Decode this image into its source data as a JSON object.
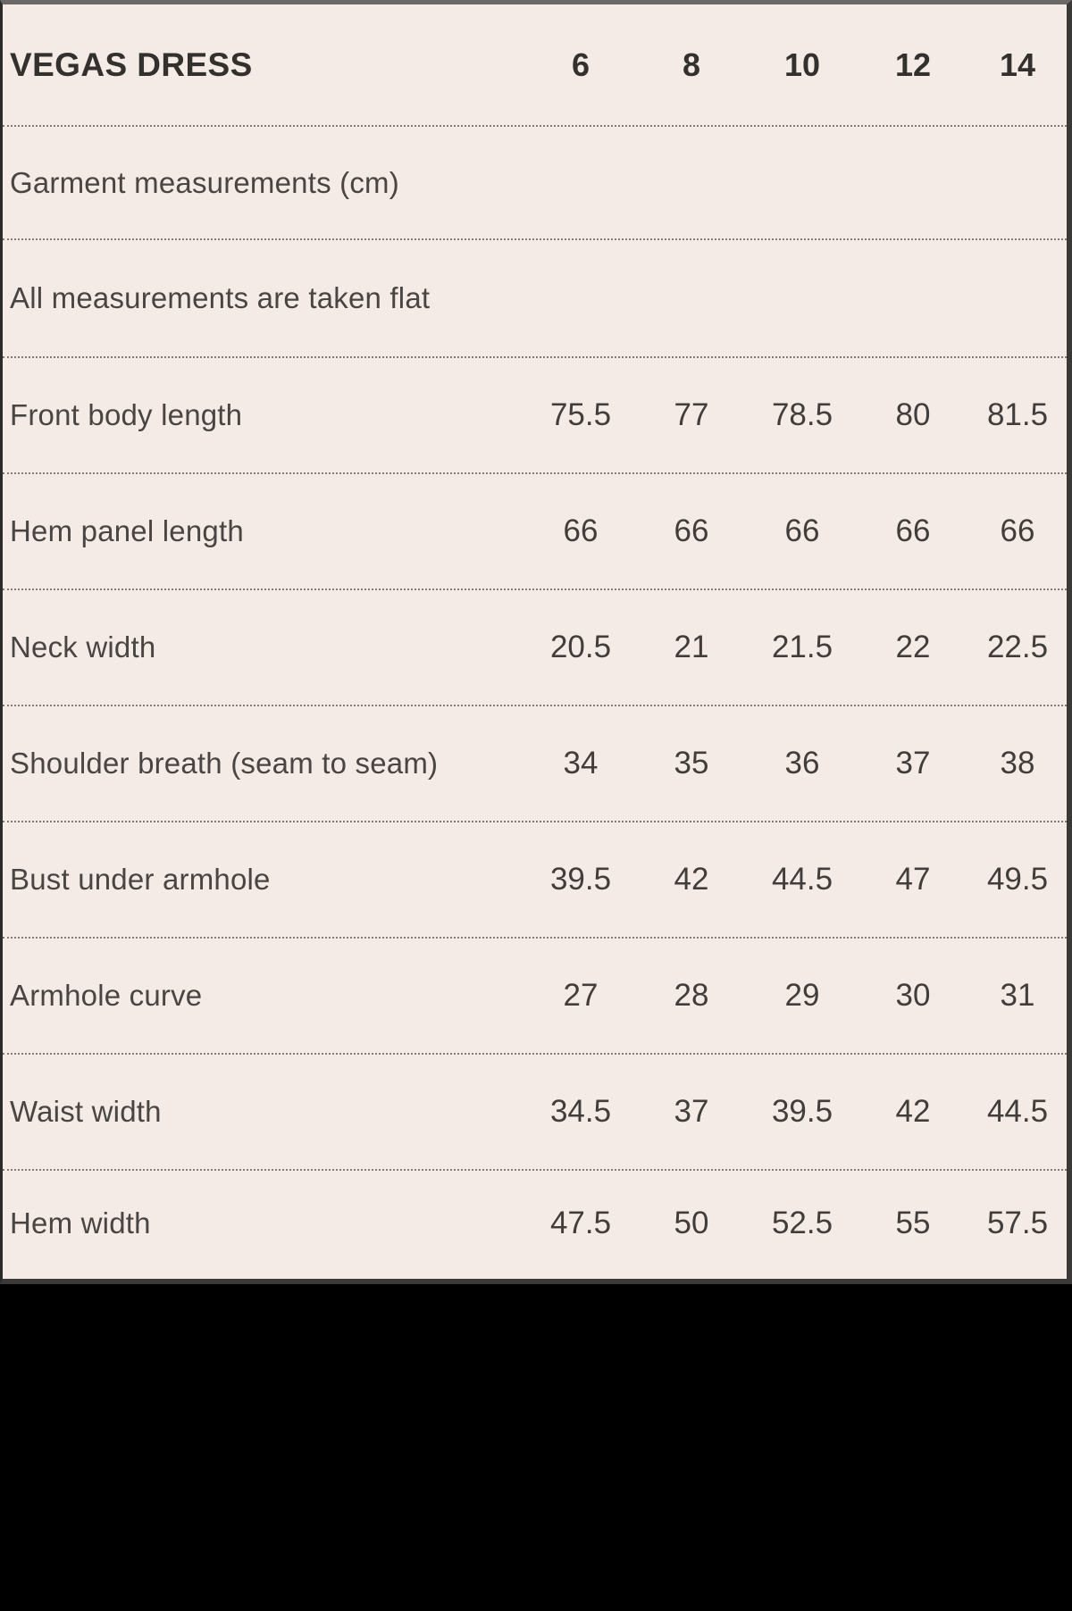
{
  "chart_data": {
    "type": "table",
    "title": "VEGAS DRESS",
    "columns": [
      "6",
      "8",
      "10",
      "12",
      "14"
    ],
    "notes": [
      "Garment measurements (cm)",
      "All measurements are taken flat"
    ],
    "rows": [
      {
        "label": "Front body length",
        "values": [
          75.5,
          77,
          78.5,
          80,
          81.5
        ]
      },
      {
        "label": "Hem panel length",
        "values": [
          66,
          66,
          66,
          66,
          66
        ]
      },
      {
        "label": "Neck width",
        "values": [
          20.5,
          21,
          21.5,
          22,
          22.5
        ]
      },
      {
        "label": "Shoulder breath (seam to seam)",
        "values": [
          34,
          35,
          36,
          37,
          38
        ]
      },
      {
        "label": "Bust under armhole",
        "values": [
          39.5,
          42,
          44.5,
          47,
          49.5
        ]
      },
      {
        "label": "Armhole curve",
        "values": [
          27,
          28,
          29,
          30,
          31
        ]
      },
      {
        "label": "Waist width",
        "values": [
          34.5,
          37,
          39.5,
          42,
          44.5
        ]
      },
      {
        "label": "Hem width",
        "values": [
          47.5,
          50,
          52.5,
          55,
          57.5
        ]
      }
    ],
    "layout": {
      "grid": "dotted-row-separators",
      "legend_position": "none"
    },
    "colors": {
      "panel_background": "#f4ebe6",
      "title_text": "#34302d",
      "body_text": "#423d3a",
      "separator": "#7f7b77",
      "frame_border": "#3b3938",
      "bottom_area": "#000000"
    }
  }
}
